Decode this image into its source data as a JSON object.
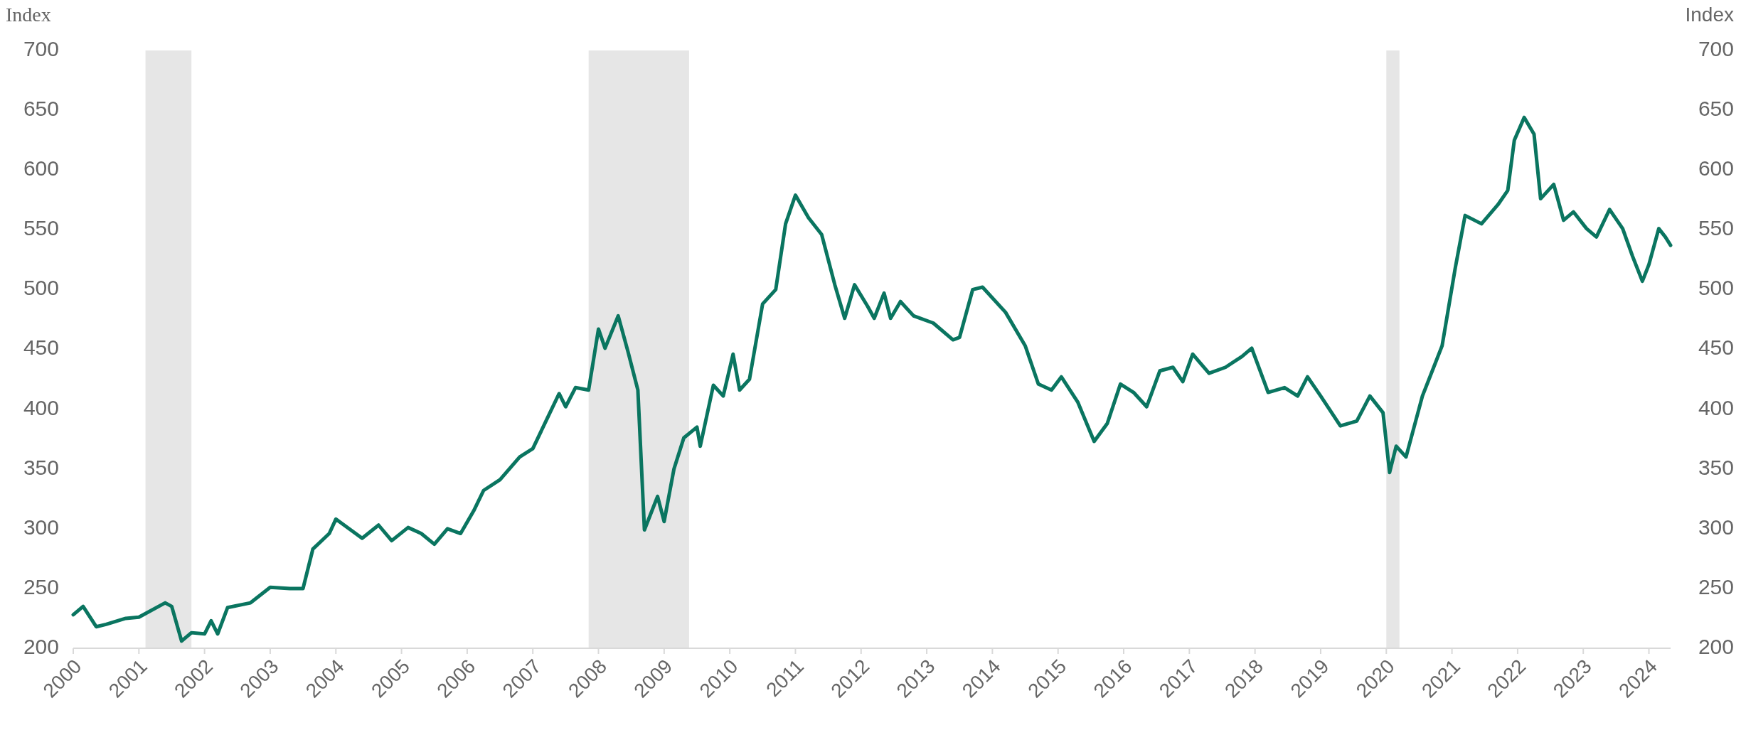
{
  "chart_data": {
    "type": "line",
    "ylabel": "Index",
    "y2label": "Index",
    "xlim": [
      2000,
      2024.33
    ],
    "xticks": [
      2000,
      2001,
      2002,
      2003,
      2004,
      2005,
      2006,
      2007,
      2008,
      2009,
      2010,
      2011,
      2012,
      2013,
      2014,
      2015,
      2016,
      2017,
      2018,
      2019,
      2020,
      2021,
      2022,
      2023,
      2024
    ],
    "ylim": [
      200,
      700
    ],
    "yticks": [
      200,
      250,
      300,
      350,
      400,
      450,
      500,
      550,
      600,
      650,
      700
    ],
    "y2lim": [
      200,
      700
    ],
    "y2ticks": [
      200,
      250,
      300,
      350,
      400,
      450,
      500,
      550,
      600,
      650,
      700
    ],
    "grid": false,
    "marker": "none",
    "line_style": "solid",
    "bands": [
      {
        "axis": "x",
        "from": 2001.1,
        "to": 2001.8,
        "color": "#e6e6e6"
      },
      {
        "axis": "x",
        "from": 2007.85,
        "to": 2009.38,
        "color": "#e6e6e6"
      },
      {
        "axis": "x",
        "from": 2020.0,
        "to": 2020.2,
        "color": "#e6e6e6"
      }
    ],
    "x": [
      2000.0,
      2000.15,
      2000.35,
      2000.5,
      2000.8,
      2001.0,
      2001.4,
      2001.5,
      2001.65,
      2001.8,
      2002.0,
      2002.1,
      2002.2,
      2002.35,
      2002.7,
      2003.0,
      2003.3,
      2003.5,
      2003.65,
      2003.9,
      2004.0,
      2004.2,
      2004.4,
      2004.65,
      2004.85,
      2005.1,
      2005.3,
      2005.5,
      2005.7,
      2005.9,
      2006.1,
      2006.25,
      2006.5,
      2006.8,
      2007.0,
      2007.2,
      2007.4,
      2007.5,
      2007.65,
      2007.85,
      2008.0,
      2008.1,
      2008.3,
      2008.45,
      2008.6,
      2008.7,
      2008.9,
      2009.0,
      2009.15,
      2009.3,
      2009.5,
      2009.55,
      2009.75,
      2009.9,
      2010.05,
      2010.15,
      2010.3,
      2010.5,
      2010.7,
      2010.85,
      2011.0,
      2011.2,
      2011.4,
      2011.6,
      2011.75,
      2011.9,
      2012.1,
      2012.2,
      2012.35,
      2012.45,
      2012.6,
      2012.8,
      2013.1,
      2013.4,
      2013.5,
      2013.7,
      2013.85,
      2014.2,
      2014.5,
      2014.7,
      2014.9,
      2015.05,
      2015.3,
      2015.55,
      2015.75,
      2015.95,
      2016.15,
      2016.35,
      2016.55,
      2016.75,
      2016.9,
      2017.05,
      2017.3,
      2017.55,
      2017.8,
      2017.95,
      2018.2,
      2018.45,
      2018.65,
      2018.8,
      2019.0,
      2019.3,
      2019.55,
      2019.75,
      2019.95,
      2020.05,
      2020.15,
      2020.3,
      2020.55,
      2020.85,
      2021.05,
      2021.2,
      2021.45,
      2021.7,
      2021.85,
      2021.95,
      2022.1,
      2022.25,
      2022.35,
      2022.55,
      2022.7,
      2022.85,
      2023.05,
      2023.2,
      2023.4,
      2023.6,
      2023.75,
      2023.9,
      2024.0,
      2024.15,
      2024.25,
      2024.33
    ],
    "series": [
      {
        "color": "#0a7560",
        "values": [
          228,
          235,
          218,
          220,
          225,
          226,
          238,
          235,
          206,
          213,
          212,
          223,
          212,
          234,
          238,
          251,
          250,
          250,
          283,
          296,
          308,
          300,
          292,
          303,
          290,
          301,
          296,
          287,
          300,
          296,
          315,
          332,
          341,
          360,
          367,
          390,
          413,
          402,
          418,
          416,
          467,
          451,
          478,
          448,
          416,
          299,
          327,
          306,
          350,
          376,
          385,
          369,
          420,
          411,
          446,
          416,
          425,
          488,
          500,
          555,
          579,
          560,
          546,
          504,
          476,
          504,
          486,
          476,
          497,
          476,
          490,
          478,
          472,
          458,
          460,
          500,
          502,
          481,
          453,
          421,
          416,
          427,
          406,
          373,
          388,
          421,
          414,
          402,
          432,
          435,
          423,
          446,
          430,
          435,
          444,
          451,
          414,
          418,
          411,
          427,
          411,
          386,
          390,
          411,
          397,
          347,
          369,
          360,
          411,
          453,
          518,
          562,
          555,
          571,
          583,
          625,
          644,
          630,
          576,
          588,
          558,
          565,
          551,
          544,
          567,
          551,
          528,
          507,
          521,
          551,
          544,
          537
        ]
      }
    ]
  }
}
